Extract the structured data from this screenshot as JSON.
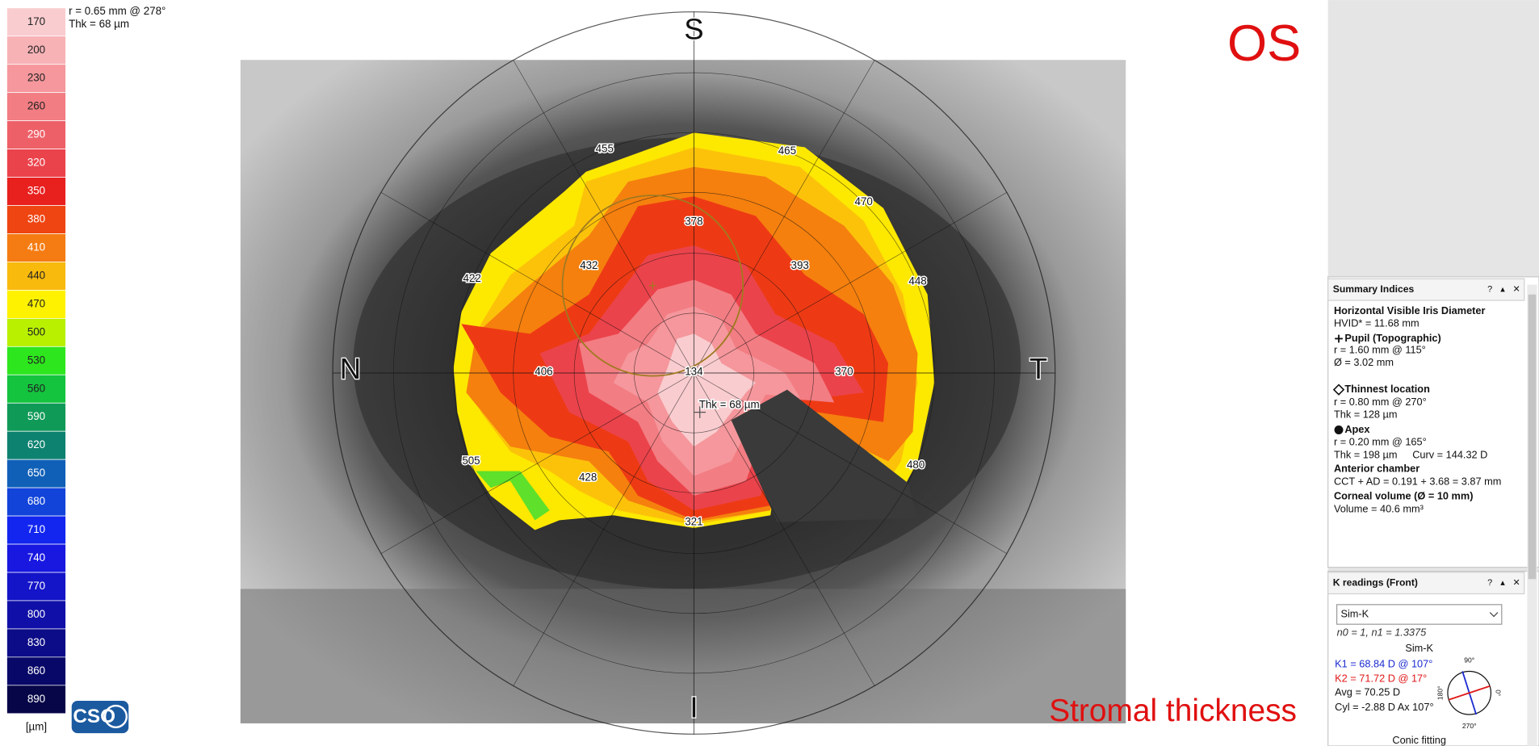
{
  "color_scale": {
    "values": [
      170,
      200,
      230,
      260,
      290,
      320,
      350,
      380,
      410,
      440,
      470,
      500,
      530,
      560,
      590,
      620,
      650,
      680,
      710,
      740,
      770,
      800,
      830,
      860,
      890
    ],
    "colors": [
      "#f9cdd0",
      "#f7b2b6",
      "#f5979c",
      "#f27d83",
      "#ee6068",
      "#eb434b",
      "#e8201e",
      "#ef4512",
      "#f47c12",
      "#f9ba0e",
      "#fff200",
      "#b9f000",
      "#2ee61e",
      "#14c43e",
      "#109a58",
      "#0e8270",
      "#1060b8",
      "#1244da",
      "#1226f0",
      "#1818e0",
      "#1414c8",
      "#1010a8",
      "#0c0c88",
      "#080868",
      "#060648"
    ],
    "unit": "[µm]"
  },
  "cursor": {
    "radius": "r = 0.65 mm @ 278°",
    "thickness": "Thk = 68 µm"
  },
  "logo": "CSO",
  "map": {
    "eye": "OS",
    "title": "Stromal thickness",
    "orientation": [
      "S",
      "N",
      "T",
      "I"
    ],
    "values": [
      455,
      465,
      470,
      448,
      480,
      321,
      428,
      505,
      422,
      432,
      378,
      393,
      370,
      406,
      134
    ],
    "cursor_label": "Thk = 68 µm"
  },
  "summary_indices": {
    "title": "Summary Indices",
    "buttons": [
      "?",
      "▴",
      "✕"
    ],
    "lines": [
      "Horizontal Visible Iris Diameter",
      "HVID* = 11.68 mm",
      "Pupil (Topographic)",
      "r = 1.60 mm @ 115°",
      "Ø = 3.02 mm",
      "Thinnest location",
      "r = 0.80 mm @ 270°",
      "Thk = 128 µm",
      "Apex",
      "r = 0.20 mm @ 165°",
      "Thk = 198 µm",
      "Curv = 144.32 D",
      "Anterior chamber",
      "CCT + AD = 0.191 + 3.68 = 3.87 mm",
      "Corneal volume (Ø = 10 mm)",
      "Volume = 40.6 mm³"
    ]
  },
  "k_readings": {
    "title": "K readings (Front)",
    "buttons": [
      "?",
      "▴",
      "✕"
    ],
    "dropdown": "Sim-K",
    "indices": "n0 = 1, n1 = 1.3375",
    "subtitle": "Sim-K",
    "k1": "K1 = 68.84 D  @ 107°",
    "k2": "K2 = 71.72 D  @ 17°",
    "avg": "Avg = 70.25 D",
    "cyl": "Cyl = -2.88 D Ax 107°",
    "axis_labels": [
      "90°",
      "180°",
      "0°",
      "270°"
    ],
    "footer": "Conic fitting"
  }
}
